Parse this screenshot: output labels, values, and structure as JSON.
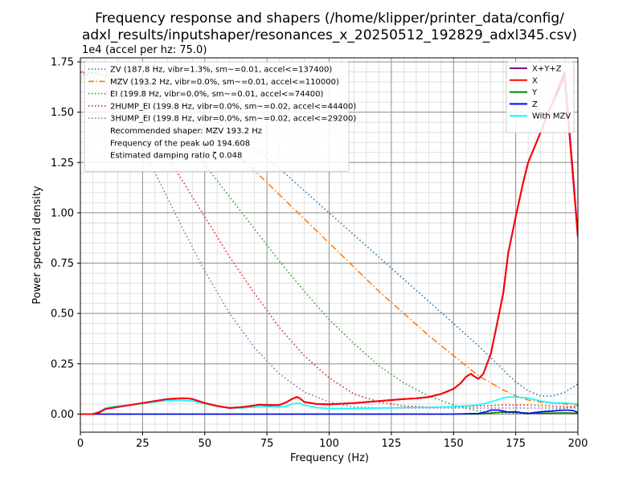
{
  "chart_data": {
    "type": "line",
    "title_line1": "Frequency response and shapers (/home/klipper/printer_data/config/",
    "title_line2": "adxl_results/inputshaper/resonances_x_20250512_192829_adxl345.csv)",
    "xlabel": "Frequency (Hz)",
    "ylabel": "Power spectral density",
    "y_scale_label": "1e4",
    "right_axis_label": "(accel per hz: 75.0)",
    "xlim": [
      0,
      200
    ],
    "ylim": [
      -0.09,
      1.77
    ],
    "y_unit_multiplier": 10000,
    "x_ticks": [
      0,
      25,
      50,
      75,
      100,
      125,
      150,
      175,
      200
    ],
    "x_tick_labels": [
      "0",
      "25",
      "50",
      "75",
      "100",
      "125",
      "150",
      "175",
      "200"
    ],
    "y_ticks": [
      0.0,
      0.25,
      0.5,
      0.75,
      1.0,
      1.25,
      1.5,
      1.75
    ],
    "y_tick_labels": [
      "0.00",
      "0.25",
      "0.50",
      "0.75",
      "1.00",
      "1.25",
      "1.50",
      "1.75"
    ],
    "grid": true,
    "minor_grid": true,
    "shaper_legend": {
      "placement": "upper-left",
      "entries": [
        {
          "label": "ZV (187.8 Hz, vibr=1.3%, sm~=0.01, accel<=137400)",
          "color": "#1f77b4",
          "style": "dotted"
        },
        {
          "label": "MZV (193.2 Hz, vibr=0.0%, sm~=0.01, accel<=110000)",
          "color": "#ff7f0e",
          "style": "dashdot"
        },
        {
          "label": "EI (199.8 Hz, vibr=0.0%, sm~=0.01, accel<=74400)",
          "color": "#2ca02c",
          "style": "dotted"
        },
        {
          "label": "2HUMP_EI (199.8 Hz, vibr=0.0%, sm~=0.02, accel<=44400)",
          "color": "#d62728",
          "style": "dotted"
        },
        {
          "label": "3HUMP_EI (199.8 Hz, vibr=0.0%, sm~=0.02, accel<=29200)",
          "color": "#9467bd",
          "style": "dotted"
        }
      ],
      "notes": [
        "Recommended shaper: MZV 193.2 Hz",
        "Frequency of the peak ω0 194.608",
        "Estimated damping ratio ζ 0.048"
      ]
    },
    "psd_legend": {
      "placement": "upper-right",
      "entries": [
        {
          "label": "X+Y+Z",
          "color": "#800080"
        },
        {
          "label": "X",
          "color": "#ff0000"
        },
        {
          "label": "Y",
          "color": "#008000"
        },
        {
          "label": "Z",
          "color": "#0000ff"
        },
        {
          "label": "With MZV",
          "color": "#00ffff"
        }
      ]
    },
    "psd_series": [
      {
        "name": "X+Y+Z",
        "color": "#800080",
        "width": 2,
        "x": [
          0,
          5,
          8,
          10,
          15,
          20,
          25,
          30,
          35,
          40,
          43,
          45,
          50,
          55,
          60,
          65,
          70,
          72,
          75,
          80,
          83,
          85,
          87,
          88,
          90,
          95,
          100,
          110,
          120,
          130,
          135,
          140,
          145,
          150,
          153,
          155,
          157,
          158,
          160,
          162,
          165,
          168,
          170,
          172,
          175,
          178,
          180,
          185,
          188,
          190,
          192,
          193,
          194.6,
          196,
          198,
          200
        ],
        "y": [
          0,
          0,
          0.01,
          0.025,
          0.035,
          0.045,
          0.055,
          0.065,
          0.075,
          0.078,
          0.078,
          0.075,
          0.055,
          0.04,
          0.03,
          0.035,
          0.043,
          0.047,
          0.045,
          0.045,
          0.06,
          0.075,
          0.085,
          0.08,
          0.06,
          0.05,
          0.048,
          0.055,
          0.065,
          0.075,
          0.078,
          0.085,
          0.1,
          0.125,
          0.155,
          0.185,
          0.2,
          0.19,
          0.175,
          0.2,
          0.3,
          0.48,
          0.6,
          0.8,
          0.98,
          1.15,
          1.25,
          1.4,
          1.5,
          1.55,
          1.62,
          1.65,
          1.7,
          1.5,
          1.2,
          0.88
        ]
      },
      {
        "name": "X",
        "color": "#ff0000",
        "width": 2,
        "x": [
          0,
          5,
          8,
          10,
          15,
          20,
          25,
          30,
          35,
          40,
          43,
          45,
          50,
          55,
          60,
          65,
          70,
          72,
          75,
          80,
          83,
          85,
          87,
          88,
          90,
          95,
          100,
          110,
          120,
          130,
          135,
          140,
          145,
          150,
          153,
          155,
          157,
          158,
          160,
          162,
          165,
          168,
          170,
          172,
          175,
          178,
          180,
          185,
          188,
          190,
          192,
          193,
          194.6,
          196,
          198,
          200
        ],
        "y": [
          0,
          0,
          0.01,
          0.025,
          0.035,
          0.045,
          0.055,
          0.065,
          0.075,
          0.078,
          0.078,
          0.075,
          0.055,
          0.04,
          0.03,
          0.035,
          0.043,
          0.047,
          0.045,
          0.045,
          0.06,
          0.075,
          0.085,
          0.08,
          0.06,
          0.05,
          0.048,
          0.055,
          0.065,
          0.075,
          0.078,
          0.085,
          0.1,
          0.125,
          0.155,
          0.185,
          0.2,
          0.19,
          0.175,
          0.2,
          0.3,
          0.48,
          0.6,
          0.8,
          0.98,
          1.15,
          1.25,
          1.4,
          1.5,
          1.55,
          1.6,
          1.63,
          1.68,
          1.48,
          1.18,
          0.88
        ]
      },
      {
        "name": "Y",
        "color": "#008000",
        "width": 1.6,
        "x": [
          0,
          50,
          100,
          150,
          160,
          165,
          170,
          175,
          180,
          185,
          190,
          195,
          200
        ],
        "y": [
          0,
          0,
          0,
          0,
          0,
          0.005,
          0.01,
          0.008,
          0.005,
          0.004,
          0.005,
          0.006,
          0.004
        ]
      },
      {
        "name": "Z",
        "color": "#0000ff",
        "width": 1.6,
        "x": [
          0,
          50,
          100,
          150,
          155,
          160,
          163,
          165,
          168,
          170,
          172,
          175,
          178,
          180,
          183,
          186,
          190,
          195,
          198,
          200
        ],
        "y": [
          0,
          0,
          0,
          0,
          0.002,
          0.003,
          0.01,
          0.02,
          0.02,
          0.015,
          0.01,
          0.012,
          0.005,
          0.003,
          0.008,
          0.012,
          0.015,
          0.02,
          0.018,
          0.008
        ]
      },
      {
        "name": "With MZV",
        "color": "#00ffff",
        "width": 1.6,
        "x": [
          0,
          5,
          8,
          10,
          15,
          20,
          25,
          30,
          35,
          40,
          45,
          50,
          55,
          60,
          65,
          70,
          75,
          80,
          83,
          85,
          88,
          90,
          95,
          100,
          110,
          120,
          130,
          140,
          150,
          160,
          165,
          170,
          172,
          175,
          180,
          185,
          190,
          195,
          200
        ],
        "y": [
          0,
          0,
          0.015,
          0.03,
          0.04,
          0.045,
          0.052,
          0.06,
          0.068,
          0.07,
          0.065,
          0.052,
          0.038,
          0.03,
          0.03,
          0.035,
          0.037,
          0.035,
          0.04,
          0.05,
          0.055,
          0.045,
          0.032,
          0.028,
          0.028,
          0.03,
          0.032,
          0.033,
          0.037,
          0.045,
          0.06,
          0.08,
          0.085,
          0.085,
          0.08,
          0.065,
          0.055,
          0.055,
          0.05
        ]
      }
    ],
    "shaper_series": [
      {
        "name": "ZV",
        "color": "#1f77b4",
        "dash": "1.5,3",
        "x": [
          0,
          10,
          20,
          30,
          40,
          50,
          60,
          70,
          80,
          90,
          100,
          110,
          120,
          130,
          140,
          150,
          160,
          170,
          175,
          180,
          185,
          190,
          195,
          200
        ],
        "y": [
          1.7,
          1.69,
          1.66,
          1.62,
          1.56,
          1.49,
          1.41,
          1.32,
          1.22,
          1.11,
          1.0,
          0.89,
          0.78,
          0.67,
          0.56,
          0.45,
          0.34,
          0.22,
          0.16,
          0.115,
          0.09,
          0.09,
          0.11,
          0.15
        ]
      },
      {
        "name": "MZV",
        "color": "#ff7f0e",
        "dash": "8,3,1.5,3",
        "x": [
          0,
          10,
          20,
          30,
          40,
          50,
          60,
          70,
          80,
          90,
          100,
          110,
          120,
          130,
          140,
          150,
          160,
          170,
          175,
          180,
          185,
          190,
          195,
          200
        ],
        "y": [
          1.7,
          1.69,
          1.65,
          1.59,
          1.51,
          1.42,
          1.32,
          1.21,
          1.09,
          0.97,
          0.85,
          0.73,
          0.61,
          0.5,
          0.39,
          0.29,
          0.19,
          0.12,
          0.09,
          0.07,
          0.06,
          0.055,
          0.05,
          0.045
        ]
      },
      {
        "name": "EI",
        "color": "#2ca02c",
        "dash": "1.5,3",
        "x": [
          0,
          10,
          20,
          30,
          40,
          50,
          60,
          70,
          80,
          90,
          100,
          110,
          120,
          130,
          140,
          150,
          160,
          170,
          180,
          190,
          200
        ],
        "y": [
          1.7,
          1.68,
          1.62,
          1.52,
          1.39,
          1.24,
          1.08,
          0.92,
          0.76,
          0.61,
          0.47,
          0.35,
          0.24,
          0.155,
          0.09,
          0.045,
          0.015,
          0.005,
          0.005,
          0.02,
          0.04
        ]
      },
      {
        "name": "2HUMP_EI",
        "color": "#d62728",
        "dash": "1.5,3",
        "x": [
          0,
          10,
          20,
          30,
          40,
          50,
          60,
          70,
          80,
          90,
          100,
          110,
          120,
          130,
          140,
          150,
          160,
          170,
          180,
          190,
          200
        ],
        "y": [
          1.7,
          1.65,
          1.53,
          1.37,
          1.18,
          0.98,
          0.78,
          0.6,
          0.43,
          0.29,
          0.18,
          0.1,
          0.06,
          0.04,
          0.035,
          0.035,
          0.04,
          0.045,
          0.045,
          0.04,
          0.035
        ]
      },
      {
        "name": "3HUMP_EI",
        "color": "#9467bd",
        "dash": "1.5,3",
        "x": [
          0,
          10,
          20,
          30,
          40,
          50,
          60,
          70,
          80,
          90,
          100,
          110,
          120,
          130,
          140,
          150,
          160,
          170,
          180,
          190,
          200
        ],
        "y": [
          1.7,
          1.62,
          1.44,
          1.2,
          0.95,
          0.71,
          0.5,
          0.33,
          0.2,
          0.11,
          0.06,
          0.035,
          0.03,
          0.03,
          0.03,
          0.03,
          0.03,
          0.03,
          0.03,
          0.03,
          0.03
        ]
      }
    ]
  }
}
